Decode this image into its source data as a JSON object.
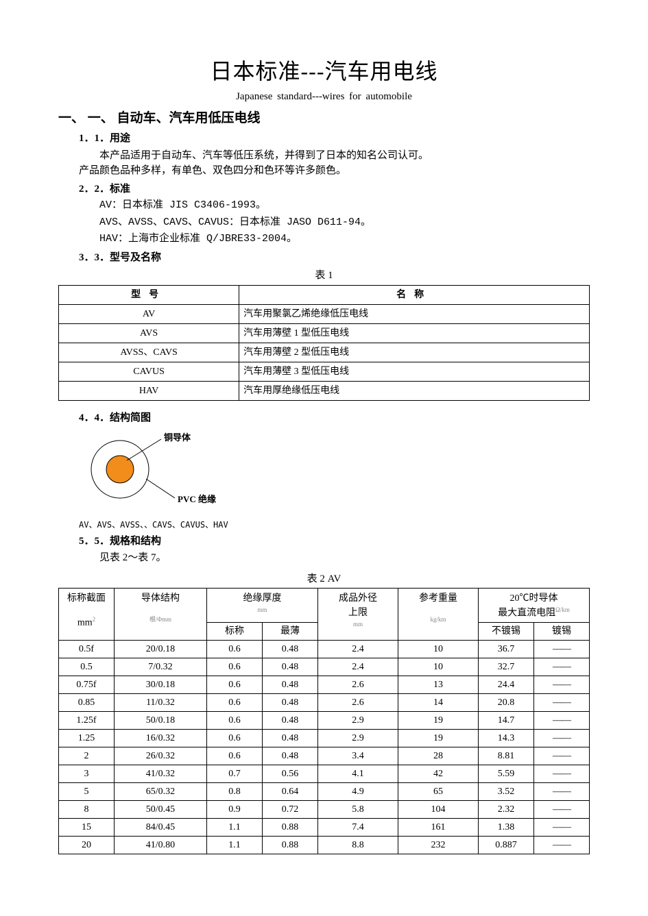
{
  "title_main": "日本标准---汽车用电线",
  "title_sub": "Japanese  standard---wires  for  automobile",
  "section1_heading": "一、  一、  自动车、汽车用低压电线",
  "s1_1_heading": "1．1．用途",
  "s1_1_p1": "本产品适用于自动车、汽车等低压系统，并得到了日本的知名公司认可。",
  "s1_1_p2": "产品颜色品种多样，有单色、双色四分和色环等许多颜色。",
  "s1_2_heading": "2．2．标准",
  "s1_2_l1": "AV：日本标准 JIS C3406-1993。",
  "s1_2_l2": "AVS、AVSS、CAVS、CAVUS：日本标准 JASO D611-94。",
  "s1_2_l3": "HAV：上海市企业标准 Q/JBRE33-2004。",
  "s1_3_heading": "3．3．型号及名称",
  "table1_caption": "表 1",
  "table1": {
    "col1_header": "型号",
    "col2_header": "名称",
    "rows": [
      {
        "model": "AV",
        "name": "汽车用聚氯乙烯绝缘低压电线"
      },
      {
        "model": "AVS",
        "name": "汽车用薄壁 1 型低压电线"
      },
      {
        "model": "AVSS、CAVS",
        "name": "汽车用薄壁 2 型低压电线"
      },
      {
        "model": "CAVUS",
        "name": "汽车用薄壁 3 型低压电线"
      },
      {
        "model": "HAV",
        "name": "汽车用厚绝缘低压电线"
      }
    ]
  },
  "s1_4_heading": "4．4．结构简图",
  "diagram": {
    "label_conductor": "铜导体",
    "label_insulation": "PVC 绝缘",
    "caption": "AV、AVS、AVSS、、CAVS、CAVUS、HAV",
    "outer_fill": "#ffffff",
    "outer_stroke": "#000000",
    "inner_fill": "#f28c1a",
    "inner_stroke": "#000000",
    "outer_r": 42,
    "inner_r": 20
  },
  "s1_5_heading": "5．5．规格和结构",
  "s1_5_p1": "见表 2～表 7。",
  "table2_caption": "表 2  AV",
  "table2": {
    "headers": {
      "c1_top": "标称截面",
      "c1_bot_unit": "mm",
      "c1_bot_sup": "2",
      "c2_top": "导体结构",
      "c2_bot_unit": "根/Φmm",
      "c3_top": "绝缘厚度",
      "c3_unit": "mm",
      "c3a": "标称",
      "c3b": "最薄",
      "c4_top": "成品外径",
      "c4_mid": "上限",
      "c4_unit": "mm",
      "c5_top": "参考重量",
      "c5_unit": "kg/km",
      "c6_top": "20℃时导体",
      "c6_mid": "最大直流电阻",
      "c6_unit": "Ω/km",
      "c6a": "不镀锡",
      "c6b": "镀锡"
    },
    "rows": [
      {
        "a": "0.5f",
        "b": "20/0.18",
        "c": "0.6",
        "d": "0.48",
        "e": "2.4",
        "f": "10",
        "g": "36.7",
        "h": "——"
      },
      {
        "a": "0.5",
        "b": "7/0.32",
        "c": "0.6",
        "d": "0.48",
        "e": "2.4",
        "f": "10",
        "g": "32.7",
        "h": "——"
      },
      {
        "a": "0.75f",
        "b": "30/0.18",
        "c": "0.6",
        "d": "0.48",
        "e": "2.6",
        "f": "13",
        "g": "24.4",
        "h": "——"
      },
      {
        "a": "0.85",
        "b": "11/0.32",
        "c": "0.6",
        "d": "0.48",
        "e": "2.6",
        "f": "14",
        "g": "20.8",
        "h": "——"
      },
      {
        "a": "1.25f",
        "b": "50/0.18",
        "c": "0.6",
        "d": "0.48",
        "e": "2.9",
        "f": "19",
        "g": "14.7",
        "h": "——"
      },
      {
        "a": "1.25",
        "b": "16/0.32",
        "c": "0.6",
        "d": "0.48",
        "e": "2.9",
        "f": "19",
        "g": "14.3",
        "h": "——"
      },
      {
        "a": "2",
        "b": "26/0.32",
        "c": "0.6",
        "d": "0.48",
        "e": "3.4",
        "f": "28",
        "g": "8.81",
        "h": "——"
      },
      {
        "a": "3",
        "b": "41/0.32",
        "c": "0.7",
        "d": "0.56",
        "e": "4.1",
        "f": "42",
        "g": "5.59",
        "h": "——"
      },
      {
        "a": "5",
        "b": "65/0.32",
        "c": "0.8",
        "d": "0.64",
        "e": "4.9",
        "f": "65",
        "g": "3.52",
        "h": "——"
      },
      {
        "a": "8",
        "b": "50/0.45",
        "c": "0.9",
        "d": "0.72",
        "e": "5.8",
        "f": "104",
        "g": "2.32",
        "h": "——"
      },
      {
        "a": "15",
        "b": "84/0.45",
        "c": "1.1",
        "d": "0.88",
        "e": "7.4",
        "f": "161",
        "g": "1.38",
        "h": "——"
      },
      {
        "a": "20",
        "b": "41/0.80",
        "c": "1.1",
        "d": "0.88",
        "e": "8.8",
        "f": "232",
        "g": "0.887",
        "h": "——"
      }
    ]
  },
  "colors": {
    "text": "#000000",
    "background": "#ffffff",
    "border": "#000000"
  }
}
